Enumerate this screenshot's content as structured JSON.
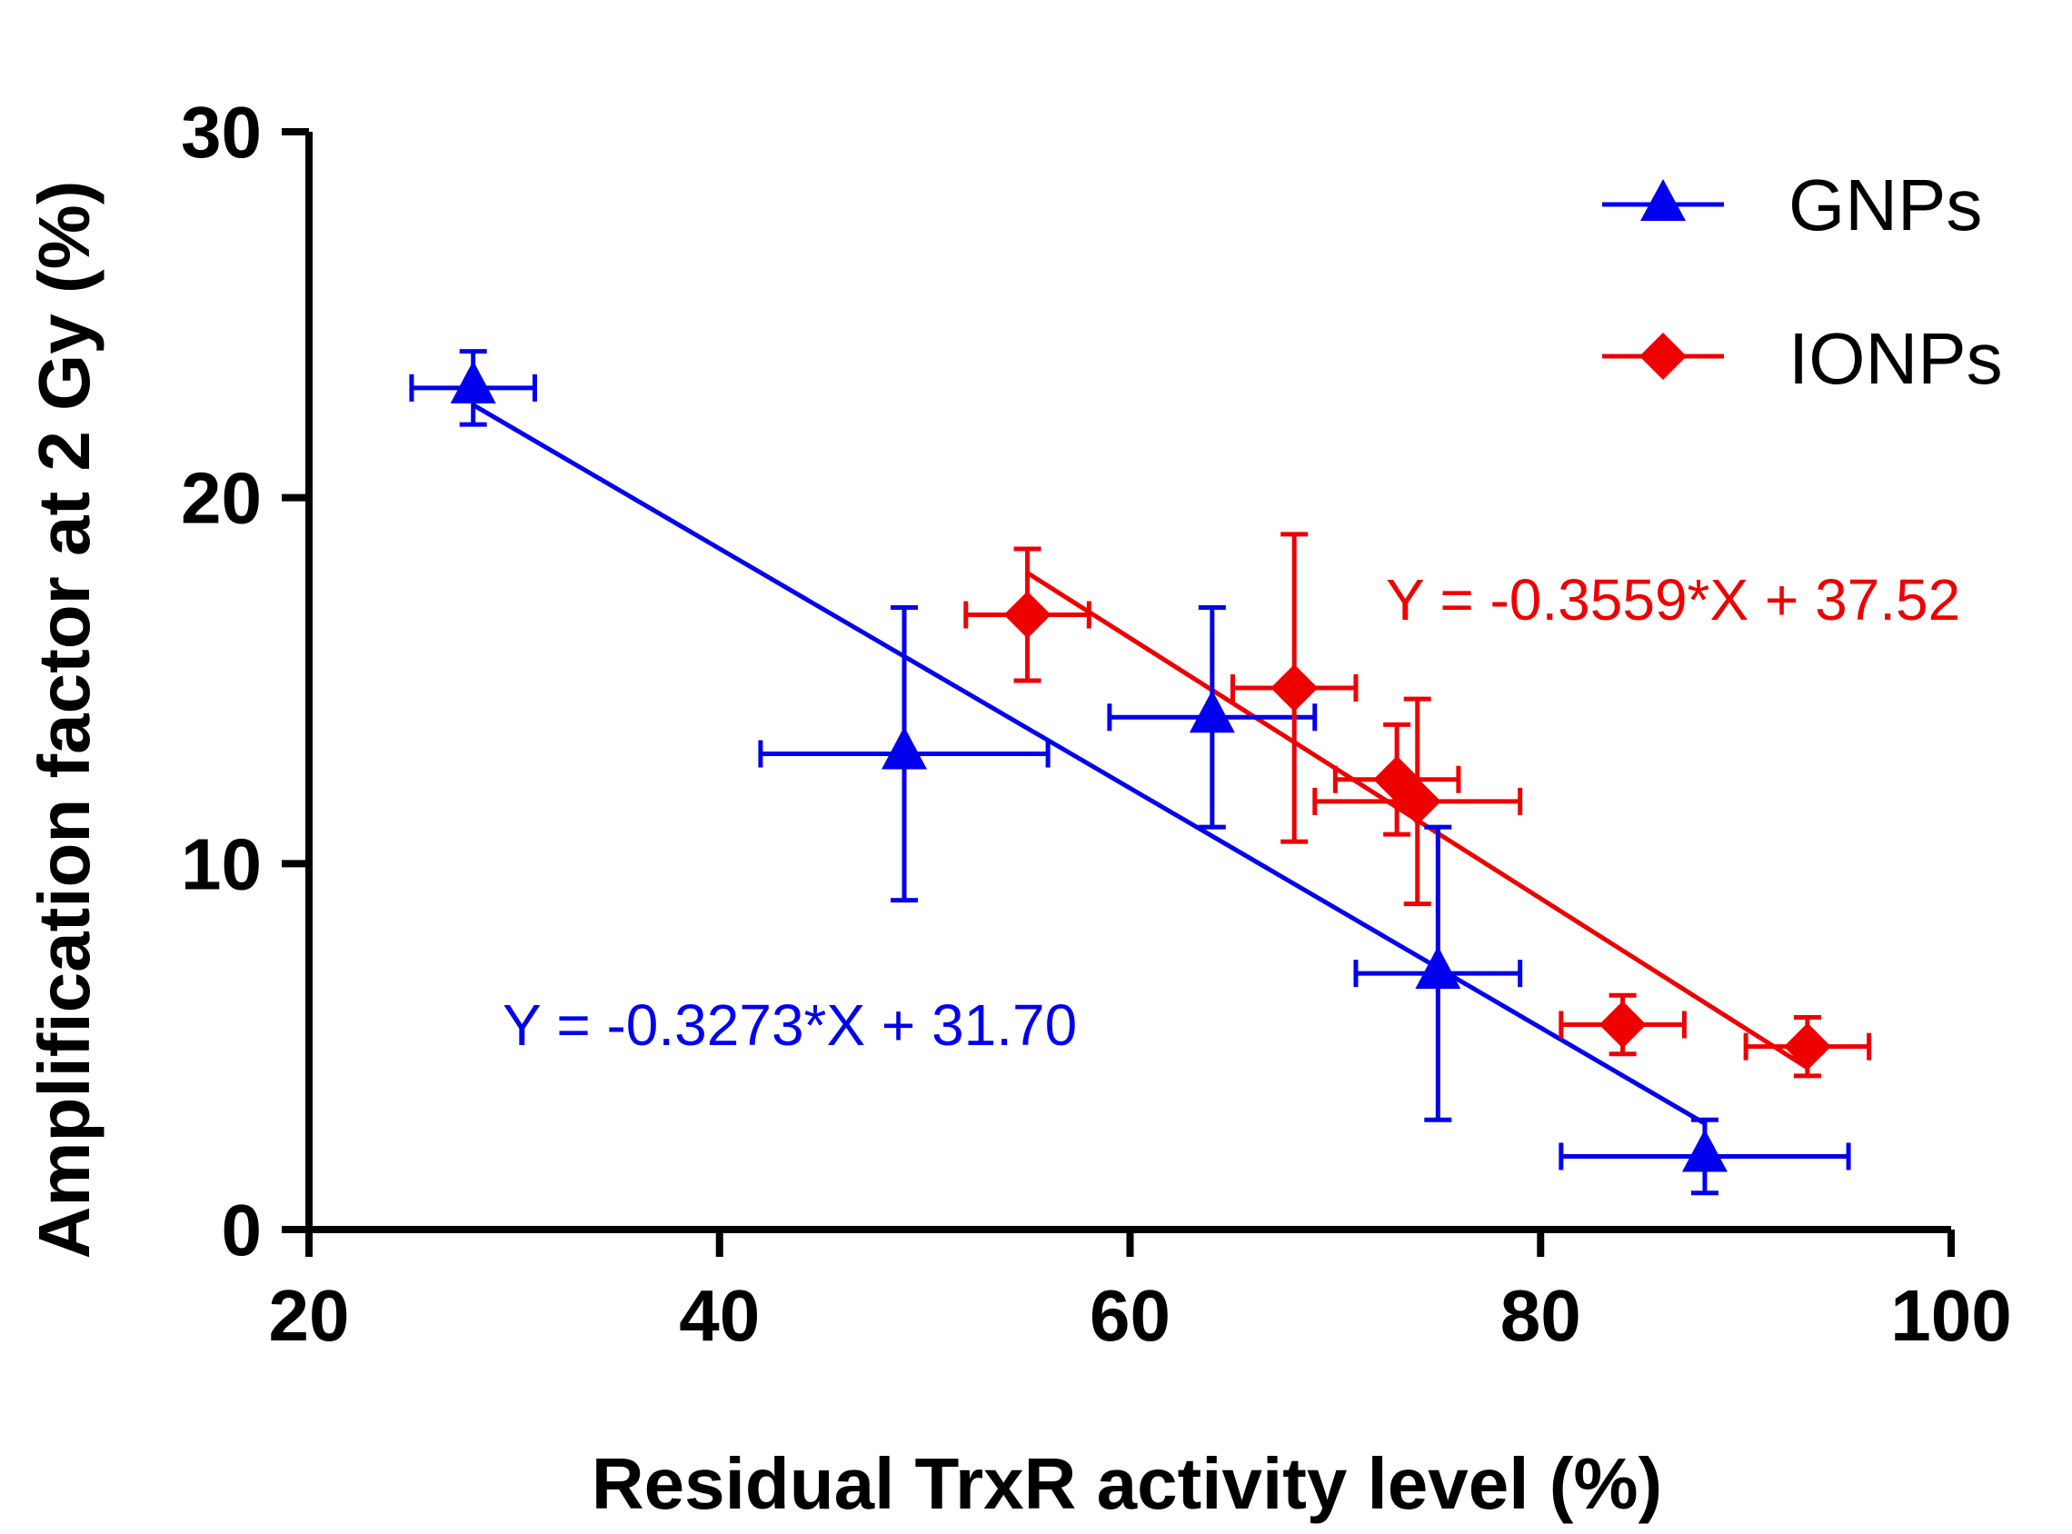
{
  "chart_data": {
    "type": "scatter",
    "title": "",
    "xlabel": "Residual TrxR activity level (%)",
    "ylabel": "Amplification factor at 2 Gy (%)",
    "xlim": [
      20,
      100
    ],
    "ylim": [
      0,
      30
    ],
    "xticks": [
      20,
      40,
      60,
      80,
      100
    ],
    "yticks": [
      0,
      10,
      20,
      30
    ],
    "legend_position": "top-right",
    "series": [
      {
        "name": "GNPs",
        "color": "#0000ee",
        "marker": "triangle",
        "points": [
          {
            "x": 28,
            "y": 23.0,
            "xerr": 3,
            "yerr": 1.0
          },
          {
            "x": 49,
            "y": 13.0,
            "xerr": 7,
            "yerr": 4.0
          },
          {
            "x": 64,
            "y": 14.0,
            "xerr": 5,
            "yerr": 3.0
          },
          {
            "x": 75,
            "y": 7.0,
            "xerr": 4,
            "yerr": 4.0
          },
          {
            "x": 88,
            "y": 2.0,
            "xerr": 7,
            "yerr": 1.0
          }
        ],
        "fit": {
          "slope": -0.3273,
          "intercept": 31.7,
          "x_range": [
            28,
            88
          ]
        },
        "equation": "Y = -0.3273*X + 31.70"
      },
      {
        "name": "IONPs",
        "color": "#ee0000",
        "marker": "diamond",
        "points": [
          {
            "x": 55,
            "y": 16.8,
            "xerr": 3,
            "yerr": 1.8
          },
          {
            "x": 68,
            "y": 14.8,
            "xerr": 3,
            "yerr": 4.2
          },
          {
            "x": 73,
            "y": 12.3,
            "xerr": 3,
            "yerr": 1.5
          },
          {
            "x": 74,
            "y": 11.7,
            "xerr": 5,
            "yerr": 2.8
          },
          {
            "x": 84,
            "y": 5.6,
            "xerr": 3,
            "yerr": 0.8
          },
          {
            "x": 93,
            "y": 5.0,
            "xerr": 3,
            "yerr": 0.8
          }
        ],
        "fit": {
          "slope": -0.3559,
          "intercept": 37.52,
          "x_range": [
            55,
            93
          ]
        },
        "equation": "Y = -0.3559*X + 37.52"
      }
    ]
  }
}
